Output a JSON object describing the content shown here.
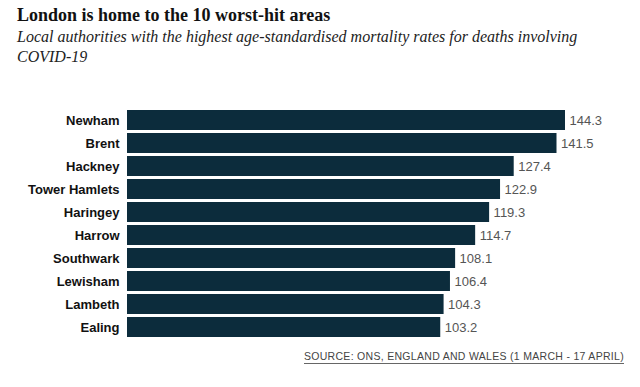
{
  "chart_data": {
    "type": "bar",
    "orientation": "horizontal",
    "title": "London is home to the 10 worst-hit areas",
    "subtitle": "Local authorities with the highest age-standardised mortality rates for deaths involving COVID-19",
    "caption": "SOURCE: ONS, ENGLAND AND WALES (1 MARCH - 17 APRIL)",
    "categories": [
      "Newham",
      "Brent",
      "Hackney",
      "Tower Hamlets",
      "Haringey",
      "Harrow",
      "Southwark",
      "Lewisham",
      "Lambeth",
      "Ealing"
    ],
    "values": [
      144.3,
      141.5,
      127.4,
      122.9,
      119.3,
      114.7,
      108.1,
      106.4,
      104.3,
      103.2
    ],
    "color": "#0c2c3c",
    "xlim": [
      0,
      144.3
    ],
    "data_labels": true,
    "tick_labels": "y",
    "grid": false
  }
}
